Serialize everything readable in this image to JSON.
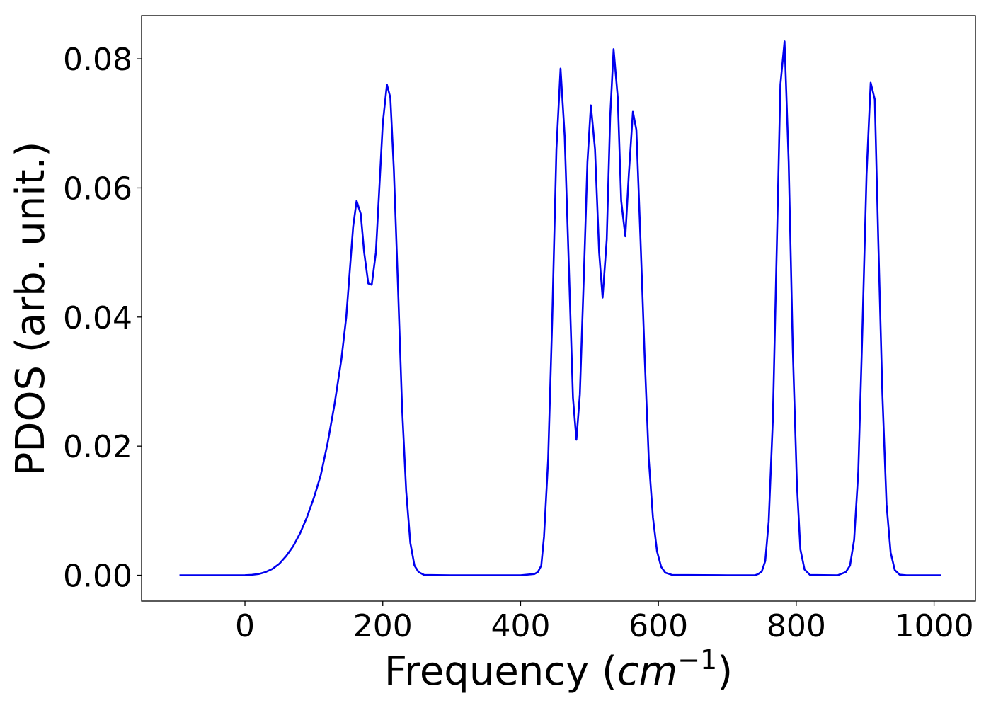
{
  "chart_data": {
    "type": "line",
    "title": "",
    "xlabel_main": "Frequency (",
    "xlabel_unit": "cm",
    "xlabel_exp": "−1",
    "xlabel_close": ")",
    "ylabel": "PDOS (arb. unit.)",
    "xlim": [
      -150,
      1060
    ],
    "ylim": [
      -0.004,
      0.0867
    ],
    "x_ticks": [
      0,
      200,
      400,
      600,
      800,
      1000
    ],
    "x_tick_labels": [
      "0",
      "200",
      "400",
      "600",
      "800",
      "1000"
    ],
    "y_ticks": [
      0.0,
      0.02,
      0.04,
      0.06,
      0.08
    ],
    "y_tick_labels": [
      "0.00",
      "0.02",
      "0.04",
      "0.06",
      "0.08"
    ],
    "grid": false,
    "line_color": "#0000ee",
    "series": [
      {
        "x": [
          -95,
          -50,
          -20,
          0,
          10,
          20,
          30,
          40,
          50,
          60,
          70,
          80,
          90,
          100,
          110,
          120,
          130,
          140,
          147,
          152,
          157,
          162,
          168,
          173,
          179,
          184,
          190,
          195,
          200,
          206,
          211,
          216,
          222,
          228,
          234,
          240,
          246,
          252,
          260,
          300,
          350,
          400,
          420,
          425,
          430,
          434,
          440,
          446,
          452,
          458,
          464,
          470,
          476,
          481,
          486,
          492,
          497,
          502,
          508,
          514,
          519,
          525,
          530,
          535,
          541,
          546,
          552,
          557,
          563,
          568,
          574,
          580,
          586,
          592,
          598,
          604,
          610,
          620,
          700,
          740,
          745,
          750,
          755,
          760,
          766,
          772,
          777,
          783,
          789,
          795,
          801,
          806,
          812,
          820,
          860,
          872,
          878,
          884,
          890,
          896,
          902,
          908,
          914,
          919,
          925,
          931,
          937,
          943,
          950,
          960,
          1010
        ],
        "y": [
          0,
          0,
          0,
          1e-05,
          7e-05,
          0.0002,
          0.0005,
          0.001,
          0.0018,
          0.003,
          0.0045,
          0.0065,
          0.009,
          0.012,
          0.0155,
          0.0205,
          0.0265,
          0.0335,
          0.04,
          0.047,
          0.054,
          0.058,
          0.056,
          0.05,
          0.0452,
          0.045,
          0.05,
          0.06,
          0.07,
          0.076,
          0.074,
          0.063,
          0.045,
          0.026,
          0.013,
          0.005,
          0.0015,
          0.0005,
          5e-05,
          0,
          0,
          0,
          0.0002,
          0.0005,
          0.0015,
          0.006,
          0.018,
          0.04,
          0.066,
          0.0785,
          0.068,
          0.048,
          0.0275,
          0.021,
          0.028,
          0.047,
          0.064,
          0.0728,
          0.066,
          0.05,
          0.043,
          0.052,
          0.071,
          0.0815,
          0.074,
          0.058,
          0.0525,
          0.062,
          0.0718,
          0.069,
          0.052,
          0.034,
          0.018,
          0.009,
          0.0037,
          0.0013,
          0.0004,
          5e-05,
          0,
          0,
          0.0002,
          0.0006,
          0.0022,
          0.0083,
          0.024,
          0.052,
          0.076,
          0.0827,
          0.064,
          0.035,
          0.014,
          0.004,
          0.0009,
          5e-05,
          0,
          0.0005,
          0.0015,
          0.0055,
          0.016,
          0.038,
          0.062,
          0.0763,
          0.0737,
          0.052,
          0.028,
          0.011,
          0.0035,
          0.0008,
          0.0001,
          0,
          0
        ]
      }
    ]
  }
}
